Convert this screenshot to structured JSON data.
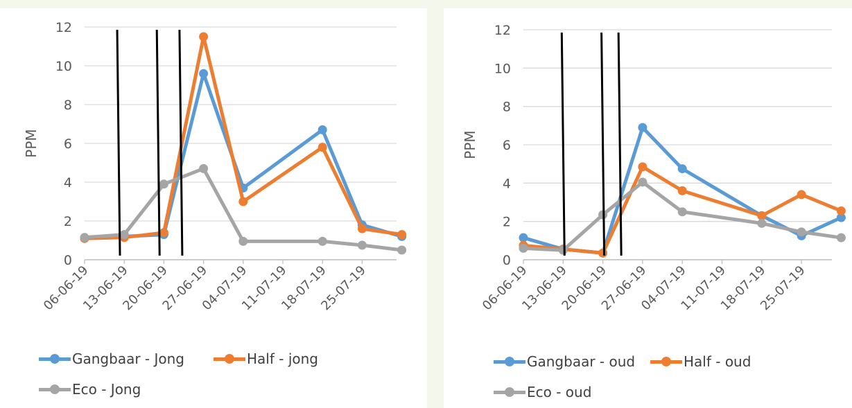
{
  "colors": {
    "blue": "#5b9bd5",
    "orange": "#ed7d31",
    "gray": "#a5a5a5",
    "marker_lines": "#000000"
  },
  "chart_data": [
    {
      "type": "line",
      "ylabel": "PPM",
      "xlabel": "",
      "ylim": [
        0,
        12
      ],
      "yticks": [
        0,
        2,
        4,
        6,
        8,
        10,
        12
      ],
      "x_tick_labels": [
        "06-06-19",
        "13-06-19",
        "20-06-19",
        "27-06-19",
        "04-07-19",
        "11-07-19",
        "18-07-19",
        "25-07-19"
      ],
      "grid": true,
      "legend_position": "bottom",
      "series": [
        {
          "name": "Gangbaar - Jong",
          "color": "#5b9bd5",
          "x": [
            "06-06-19",
            "13-06-19",
            "20-06-19",
            "27-06-19",
            "04-07-19",
            "18-07-19",
            "25-07-19",
            "01-08-19"
          ],
          "values": [
            1.1,
            1.2,
            1.3,
            9.6,
            3.7,
            6.7,
            1.8,
            1.2
          ]
        },
        {
          "name": "Half - jong",
          "color": "#ed7d31",
          "x": [
            "06-06-19",
            "13-06-19",
            "20-06-19",
            "27-06-19",
            "04-07-19",
            "18-07-19",
            "25-07-19",
            "01-08-19"
          ],
          "values": [
            1.1,
            1.15,
            1.4,
            11.5,
            3.0,
            5.8,
            1.6,
            1.3
          ]
        },
        {
          "name": "Eco - Jong",
          "color": "#a5a5a5",
          "x": [
            "06-06-19",
            "13-06-19",
            "20-06-19",
            "27-06-19",
            "04-07-19",
            "18-07-19",
            "25-07-19",
            "01-08-19"
          ],
          "values": [
            1.15,
            1.3,
            3.9,
            4.7,
            0.95,
            0.95,
            0.75,
            0.5
          ]
        }
      ],
      "vertical_markers": [
        "12-06-19",
        "19-06-19",
        "23-06-19"
      ]
    },
    {
      "type": "line",
      "ylabel": "PPM",
      "xlabel": "",
      "ylim": [
        0,
        12
      ],
      "yticks": [
        0,
        2,
        4,
        6,
        8,
        10,
        12
      ],
      "x_tick_labels": [
        "06-06-19",
        "13-06-19",
        "20-06-19",
        "27-06-19",
        "04-07-19",
        "11-07-19",
        "18-07-19",
        "25-07-19"
      ],
      "grid": true,
      "legend_position": "bottom",
      "series": [
        {
          "name": "Gangbaar - oud",
          "color": "#5b9bd5",
          "x": [
            "06-06-19",
            "13-06-19",
            "20-06-19",
            "27-06-19",
            "04-07-19",
            "18-07-19",
            "25-07-19",
            "01-08-19"
          ],
          "values": [
            1.15,
            0.55,
            0.35,
            6.9,
            4.75,
            2.3,
            1.25,
            2.2
          ]
        },
        {
          "name": "Half - oud",
          "color": "#ed7d31",
          "x": [
            "06-06-19",
            "13-06-19",
            "20-06-19",
            "27-06-19",
            "04-07-19",
            "18-07-19",
            "25-07-19",
            "01-08-19"
          ],
          "values": [
            0.75,
            0.55,
            0.35,
            4.85,
            3.6,
            2.3,
            3.4,
            2.55
          ]
        },
        {
          "name": "Eco - oud",
          "color": "#a5a5a5",
          "x": [
            "06-06-19",
            "13-06-19",
            "20-06-19",
            "27-06-19",
            "04-07-19",
            "18-07-19",
            "25-07-19",
            "01-08-19"
          ],
          "values": [
            0.6,
            0.5,
            2.35,
            4.05,
            2.5,
            1.9,
            1.45,
            1.15
          ]
        }
      ],
      "vertical_markers": [
        "13-06-19",
        "20-06-19",
        "23-06-19"
      ]
    }
  ]
}
